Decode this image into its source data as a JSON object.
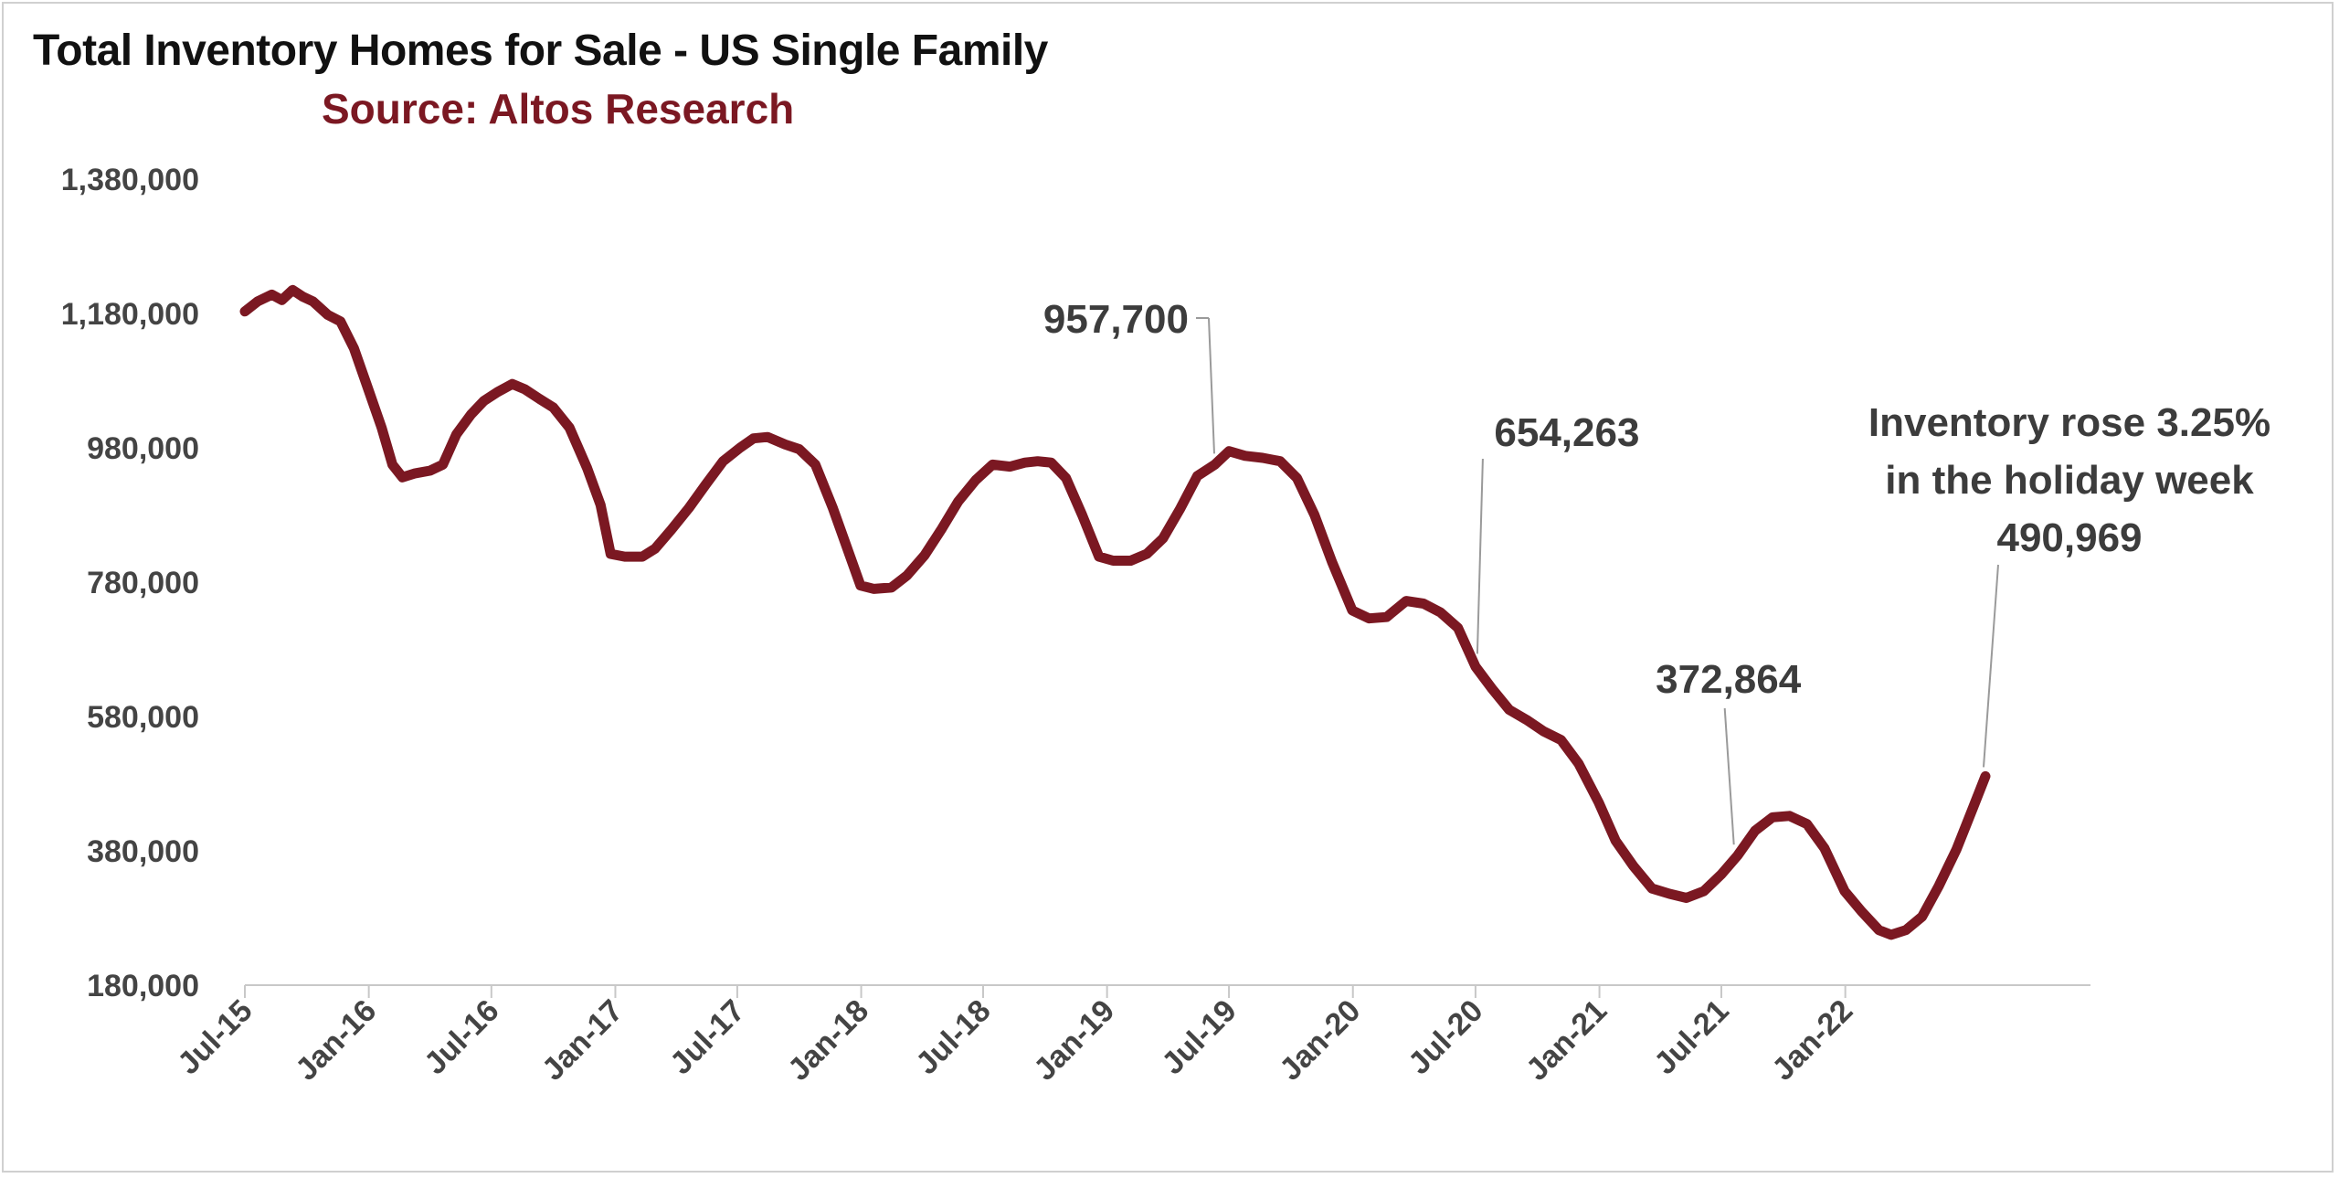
{
  "title": "Total Inventory Homes for Sale - US Single Family",
  "subtitle": "Source: Altos Research",
  "colors": {
    "line": "#7b1822",
    "subtitle": "#7b1822",
    "axis": "#c8c8c8",
    "leader": "#9a9a9a",
    "tick_text": "#444444",
    "annotation_text": "#3c3c3c"
  },
  "chart_data": {
    "type": "line",
    "title": "Total Inventory Homes for Sale - US Single Family",
    "subtitle": "Source: Altos Research",
    "xlabel": "",
    "ylabel": "",
    "ylim": [
      180000,
      1380000
    ],
    "yticks": [
      180000,
      380000,
      580000,
      780000,
      980000,
      1180000,
      1380000
    ],
    "ytick_labels": [
      "180,000",
      "380,000",
      "580,000",
      "780,000",
      "980,000",
      "1,180,000",
      "1,380,000"
    ],
    "xlim": [
      "2015-07-01",
      "2022-12-31"
    ],
    "xticks": [
      "2015-07-01",
      "2016-01-01",
      "2016-07-01",
      "2017-01-01",
      "2017-07-01",
      "2018-01-01",
      "2018-07-01",
      "2019-01-01",
      "2019-07-01",
      "2020-01-01",
      "2020-07-01",
      "2021-01-01",
      "2021-07-01",
      "2022-01-01"
    ],
    "xtick_labels": [
      "Jul-15",
      "Jan-16",
      "Jul-16",
      "Jan-17",
      "Jul-17",
      "Jan-18",
      "Jul-18",
      "Jan-19",
      "Jul-19",
      "Jan-20",
      "Jul-20",
      "Jan-21",
      "Jul-21",
      "Jan-22"
    ],
    "grid": false,
    "legend": "none",
    "series": [
      {
        "points": [
          [
            "2015-07-01",
            1183000
          ],
          [
            "2015-07-20",
            1198000
          ],
          [
            "2015-08-10",
            1208000
          ],
          [
            "2015-08-25",
            1200000
          ],
          [
            "2015-09-10",
            1215000
          ],
          [
            "2015-09-25",
            1205000
          ],
          [
            "2015-10-10",
            1198000
          ],
          [
            "2015-11-01",
            1178000
          ],
          [
            "2015-11-20",
            1168000
          ],
          [
            "2015-12-10",
            1128000
          ],
          [
            "2016-01-01",
            1065000
          ],
          [
            "2016-01-20",
            1010000
          ],
          [
            "2016-02-05",
            955000
          ],
          [
            "2016-02-20",
            936000
          ],
          [
            "2016-03-10",
            942000
          ],
          [
            "2016-04-01",
            946000
          ],
          [
            "2016-04-20",
            955000
          ],
          [
            "2016-05-10",
            1000000
          ],
          [
            "2016-06-01",
            1030000
          ],
          [
            "2016-06-20",
            1050000
          ],
          [
            "2016-07-10",
            1063000
          ],
          [
            "2016-08-01",
            1075000
          ],
          [
            "2016-08-20",
            1067000
          ],
          [
            "2016-09-10",
            1053000
          ],
          [
            "2016-10-01",
            1040000
          ],
          [
            "2016-10-25",
            1010000
          ],
          [
            "2016-11-20",
            950000
          ],
          [
            "2016-12-10",
            895000
          ],
          [
            "2016-12-25",
            822000
          ],
          [
            "2017-01-15",
            818000
          ],
          [
            "2017-02-10",
            818000
          ],
          [
            "2017-03-01",
            830000
          ],
          [
            "2017-03-25",
            858000
          ],
          [
            "2017-04-20",
            890000
          ],
          [
            "2017-05-15",
            925000
          ],
          [
            "2017-06-10",
            960000
          ],
          [
            "2017-07-05",
            980000
          ],
          [
            "2017-07-25",
            994000
          ],
          [
            "2017-08-15",
            996000
          ],
          [
            "2017-09-10",
            985000
          ],
          [
            "2017-10-01",
            978000
          ],
          [
            "2017-10-25",
            955000
          ],
          [
            "2017-11-20",
            890000
          ],
          [
            "2017-12-15",
            820000
          ],
          [
            "2017-12-31",
            775000
          ],
          [
            "2018-01-20",
            770000
          ],
          [
            "2018-02-15",
            772000
          ],
          [
            "2018-03-10",
            790000
          ],
          [
            "2018-04-05",
            820000
          ],
          [
            "2018-05-01",
            860000
          ],
          [
            "2018-05-25",
            900000
          ],
          [
            "2018-06-20",
            932000
          ],
          [
            "2018-07-15",
            955000
          ],
          [
            "2018-08-10",
            952000
          ],
          [
            "2018-09-01",
            958000
          ],
          [
            "2018-09-20",
            960000
          ],
          [
            "2018-10-10",
            958000
          ],
          [
            "2018-11-01",
            935000
          ],
          [
            "2018-11-25",
            880000
          ],
          [
            "2018-12-20",
            818000
          ],
          [
            "2019-01-10",
            812000
          ],
          [
            "2019-02-05",
            812000
          ],
          [
            "2019-03-01",
            822000
          ],
          [
            "2019-03-25",
            845000
          ],
          [
            "2019-04-20",
            890000
          ],
          [
            "2019-05-15",
            938000
          ],
          [
            "2019-06-10",
            955000
          ],
          [
            "2019-07-01",
            975000
          ],
          [
            "2019-07-25",
            968000
          ],
          [
            "2019-08-20",
            965000
          ],
          [
            "2019-09-15",
            960000
          ],
          [
            "2019-10-10",
            935000
          ],
          [
            "2019-11-05",
            880000
          ],
          [
            "2019-12-01",
            810000
          ],
          [
            "2019-12-31",
            738000
          ],
          [
            "2020-01-25",
            726000
          ],
          [
            "2020-02-20",
            728000
          ],
          [
            "2020-03-20",
            752000
          ],
          [
            "2020-04-15",
            748000
          ],
          [
            "2020-05-10",
            735000
          ],
          [
            "2020-06-05",
            712000
          ],
          [
            "2020-07-01",
            654263
          ],
          [
            "2020-07-25",
            622000
          ],
          [
            "2020-08-20",
            590000
          ],
          [
            "2020-09-15",
            575000
          ],
          [
            "2020-10-10",
            558000
          ],
          [
            "2020-11-05",
            545000
          ],
          [
            "2020-12-01",
            510000
          ],
          [
            "2020-12-31",
            452000
          ],
          [
            "2021-01-25",
            395000
          ],
          [
            "2021-02-20",
            358000
          ],
          [
            "2021-03-20",
            324000
          ],
          [
            "2021-04-15",
            316000
          ],
          [
            "2021-05-10",
            310000
          ],
          [
            "2021-06-05",
            320000
          ],
          [
            "2021-07-01",
            345000
          ],
          [
            "2021-07-25",
            372864
          ],
          [
            "2021-08-20",
            410000
          ],
          [
            "2021-09-15",
            430000
          ],
          [
            "2021-10-10",
            432000
          ],
          [
            "2021-11-05",
            420000
          ],
          [
            "2021-12-01",
            384000
          ],
          [
            "2021-12-31",
            320000
          ],
          [
            "2022-01-25",
            290000
          ],
          [
            "2022-02-20",
            262000
          ],
          [
            "2022-03-10",
            255000
          ],
          [
            "2022-04-01",
            262000
          ],
          [
            "2022-04-25",
            282000
          ],
          [
            "2022-05-20",
            328000
          ],
          [
            "2022-06-15",
            382000
          ],
          [
            "2022-07-10",
            445000
          ],
          [
            "2022-07-28",
            490969
          ]
        ]
      }
    ],
    "annotations": [
      {
        "text": "957,700",
        "x": "2019-06-20",
        "y": 957700
      },
      {
        "text": "654,263",
        "x": "2020-07-01",
        "y": 654263
      },
      {
        "text": "372,864",
        "x": "2021-07-25",
        "y": 372864
      },
      {
        "lines": [
          "Inventory rose 3.25%",
          "in the holiday week",
          "490,969"
        ],
        "x": "2022-07-28",
        "y": 490969
      }
    ]
  }
}
